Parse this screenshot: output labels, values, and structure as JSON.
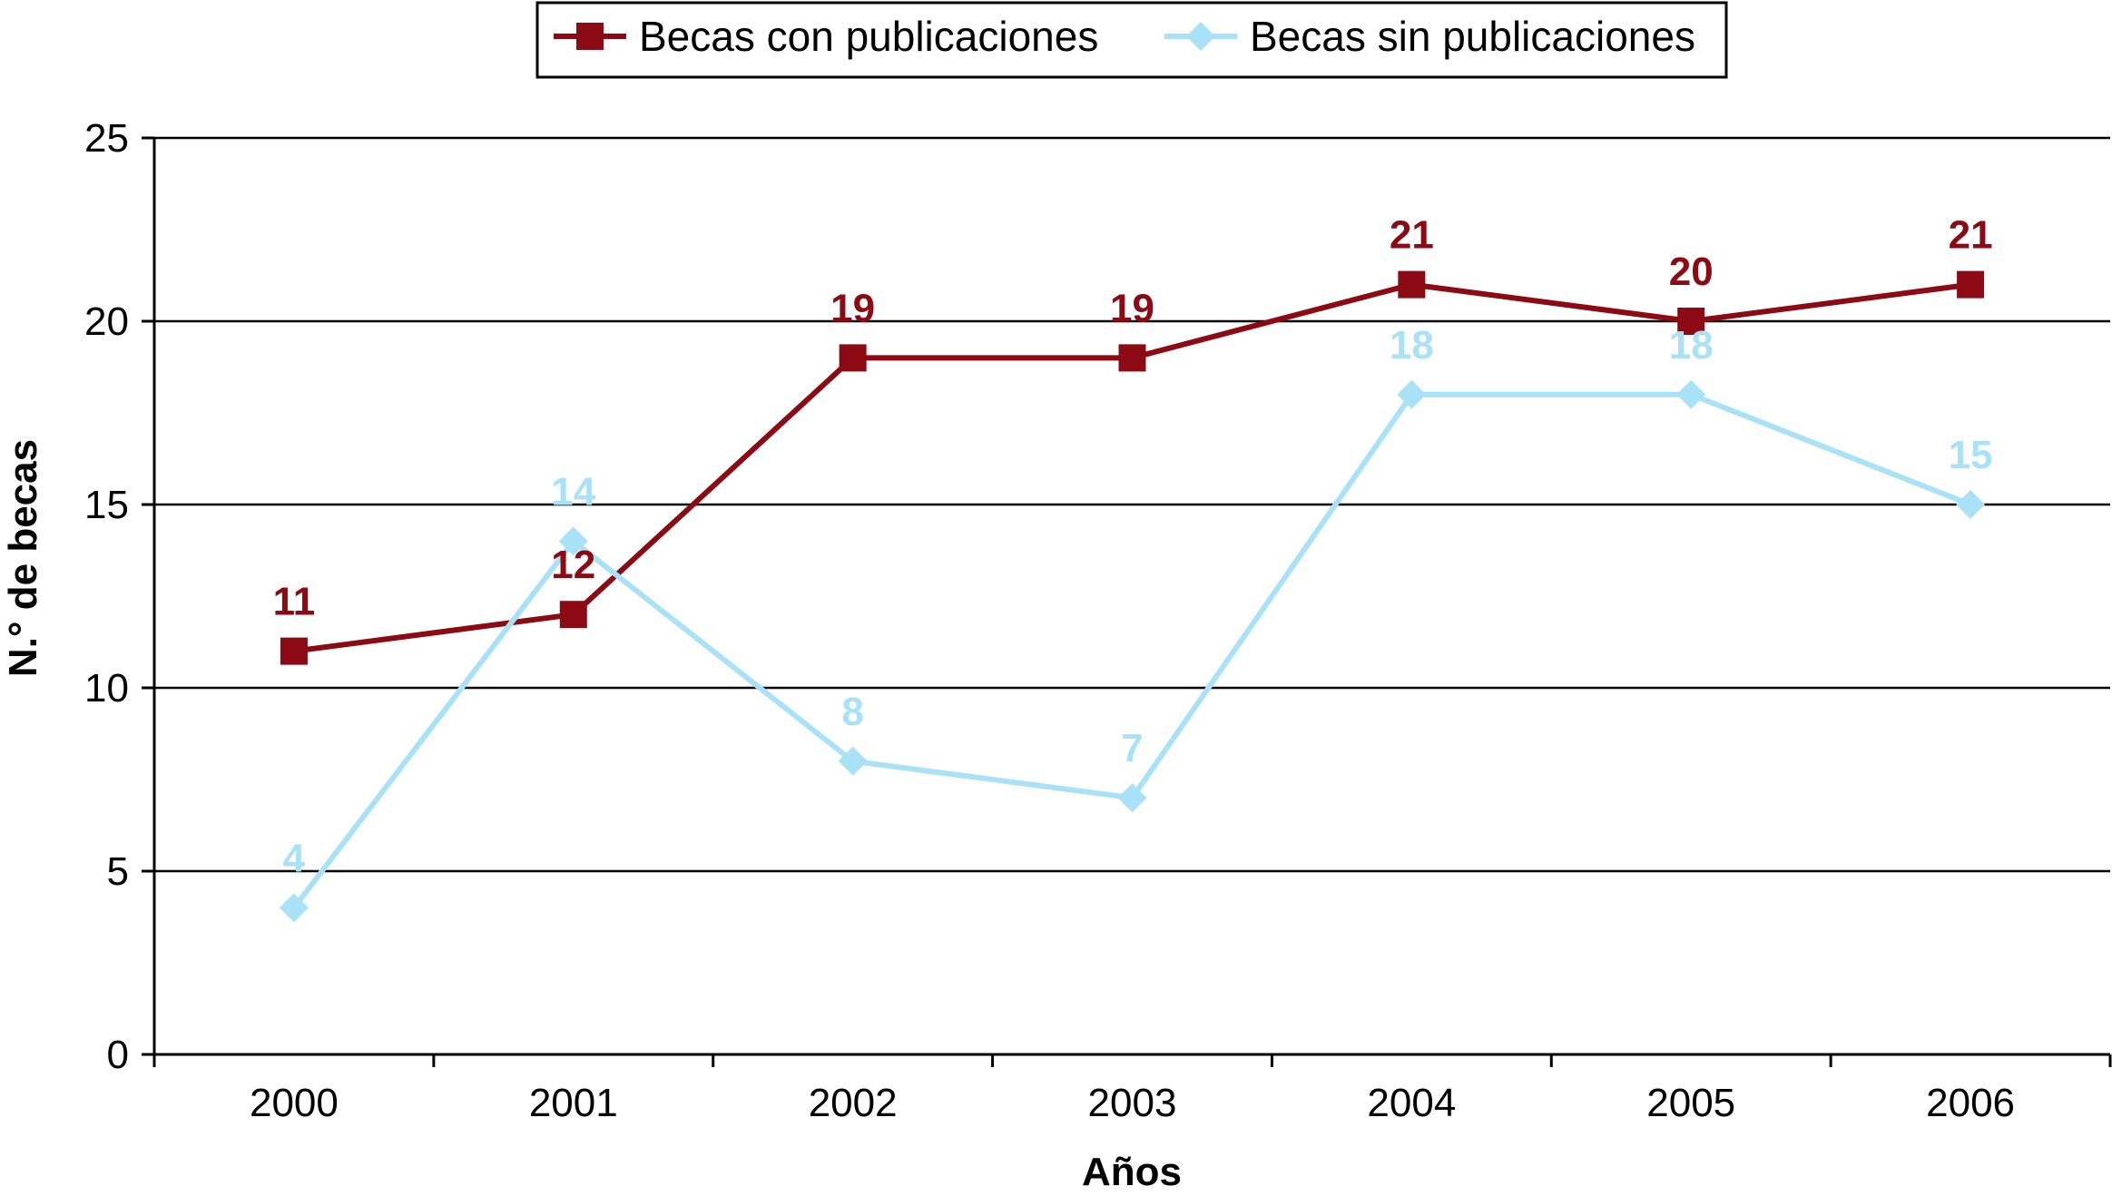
{
  "chart_data": {
    "type": "line",
    "categories": [
      "2000",
      "2001",
      "2002",
      "2003",
      "2004",
      "2005",
      "2006"
    ],
    "series": [
      {
        "name": "Becas con publicaciones",
        "values": [
          11,
          12,
          19,
          19,
          21,
          20,
          21
        ],
        "color": "#8b0a14",
        "marker": "square"
      },
      {
        "name": "Becas sin publicaciones",
        "values": [
          4,
          14,
          8,
          7,
          18,
          18,
          15
        ],
        "color": "#a9e2f7",
        "marker": "diamond"
      }
    ],
    "xlabel": "Años",
    "ylabel": "N.° de becas",
    "ylim": [
      0,
      25
    ],
    "yticks": [
      0,
      5,
      10,
      15,
      20,
      25
    ],
    "grid": true,
    "legend_position": "top-center",
    "data_labels": true
  }
}
